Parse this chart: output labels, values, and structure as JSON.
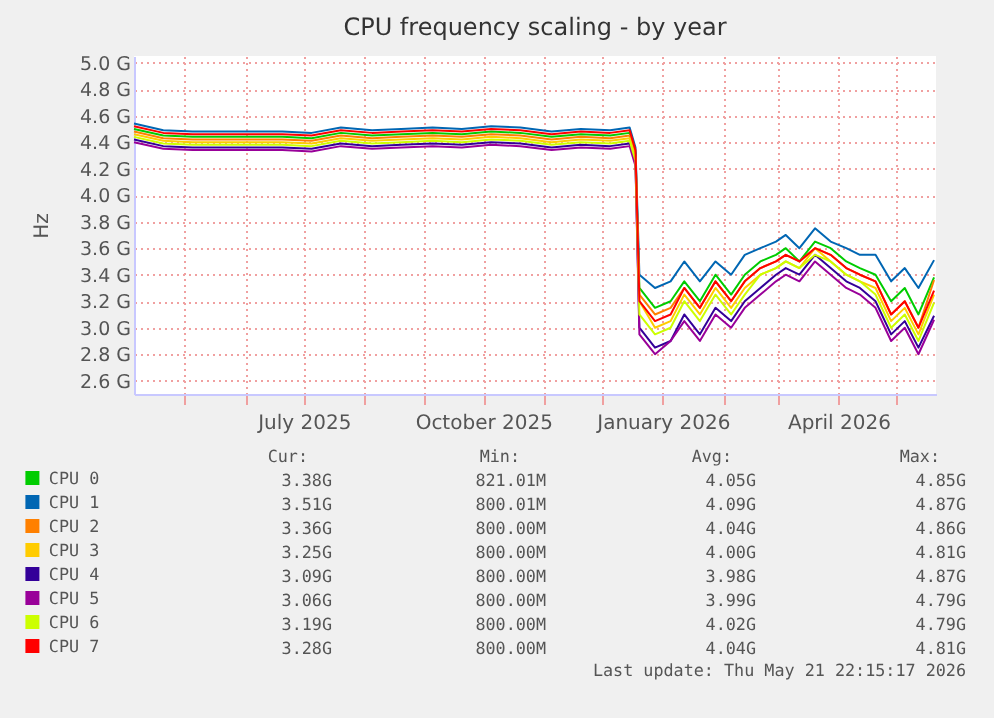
{
  "chart_data": {
    "type": "line",
    "title": "CPU frequency scaling - by year",
    "ylabel": "Hz",
    "x": [
      "2025-04-05",
      "2025-04-20",
      "2025-05-05",
      "2025-05-20",
      "2025-06-05",
      "2025-06-20",
      "2025-07-05",
      "2025-07-20",
      "2025-08-05",
      "2025-08-20",
      "2025-09-05",
      "2025-09-20",
      "2025-10-05",
      "2025-10-20",
      "2025-11-05",
      "2025-11-20",
      "2025-12-05",
      "2025-12-15",
      "2025-12-18",
      "2025-12-20",
      "2025-12-28",
      "2026-01-05",
      "2026-01-12",
      "2026-01-20",
      "2026-01-28",
      "2026-02-05",
      "2026-02-12",
      "2026-02-20",
      "2026-02-28",
      "2026-03-05",
      "2026-03-12",
      "2026-03-20",
      "2026-03-28",
      "2026-04-05",
      "2026-04-12",
      "2026-04-20",
      "2026-04-28",
      "2026-05-05",
      "2026-05-12",
      "2026-05-20"
    ],
    "series": [
      {
        "name": "CPU 0",
        "color": "#00cc00",
        "values": [
          4.5,
          4.45,
          4.44,
          4.44,
          4.44,
          4.44,
          4.43,
          4.47,
          4.45,
          4.46,
          4.47,
          4.46,
          4.48,
          4.47,
          4.44,
          4.46,
          4.45,
          4.47,
          4.32,
          3.3,
          3.15,
          3.2,
          3.35,
          3.2,
          3.4,
          3.25,
          3.4,
          3.5,
          3.55,
          3.6,
          3.5,
          3.65,
          3.6,
          3.5,
          3.45,
          3.4,
          3.2,
          3.3,
          3.1,
          3.38
        ]
      },
      {
        "name": "CPU 1",
        "color": "#0066b3",
        "values": [
          4.54,
          4.49,
          4.48,
          4.48,
          4.48,
          4.48,
          4.47,
          4.51,
          4.49,
          4.5,
          4.51,
          4.5,
          4.52,
          4.51,
          4.48,
          4.5,
          4.49,
          4.51,
          4.36,
          3.4,
          3.3,
          3.35,
          3.5,
          3.35,
          3.5,
          3.4,
          3.55,
          3.6,
          3.65,
          3.7,
          3.6,
          3.75,
          3.65,
          3.6,
          3.55,
          3.55,
          3.35,
          3.45,
          3.3,
          3.51
        ]
      },
      {
        "name": "CPU 2",
        "color": "#ff8000",
        "values": [
          4.48,
          4.43,
          4.42,
          4.42,
          4.42,
          4.42,
          4.41,
          4.45,
          4.43,
          4.44,
          4.45,
          4.44,
          4.46,
          4.45,
          4.42,
          4.44,
          4.43,
          4.45,
          4.3,
          3.25,
          3.1,
          3.15,
          3.3,
          3.15,
          3.35,
          3.2,
          3.35,
          3.45,
          3.5,
          3.55,
          3.5,
          3.6,
          3.55,
          3.45,
          3.4,
          3.35,
          3.1,
          3.2,
          3.0,
          3.36
        ]
      },
      {
        "name": "CPU 3",
        "color": "#ffcc00",
        "values": [
          4.46,
          4.41,
          4.4,
          4.4,
          4.4,
          4.4,
          4.39,
          4.43,
          4.41,
          4.42,
          4.43,
          4.42,
          4.44,
          4.43,
          4.4,
          4.42,
          4.41,
          4.43,
          4.28,
          3.2,
          3.0,
          3.05,
          3.25,
          3.1,
          3.3,
          3.15,
          3.3,
          3.4,
          3.45,
          3.5,
          3.45,
          3.6,
          3.5,
          3.4,
          3.35,
          3.3,
          3.05,
          3.15,
          2.95,
          3.25
        ]
      },
      {
        "name": "CPU 4",
        "color": "#330099",
        "values": [
          4.42,
          4.37,
          4.36,
          4.36,
          4.36,
          4.36,
          4.35,
          4.39,
          4.37,
          4.38,
          4.39,
          4.38,
          4.4,
          4.39,
          4.36,
          4.38,
          4.37,
          4.39,
          4.24,
          3.0,
          2.85,
          2.9,
          3.1,
          2.95,
          3.15,
          3.05,
          3.2,
          3.3,
          3.4,
          3.45,
          3.4,
          3.55,
          3.45,
          3.35,
          3.3,
          3.2,
          2.95,
          3.05,
          2.85,
          3.09
        ]
      },
      {
        "name": "CPU 5",
        "color": "#990099",
        "values": [
          4.4,
          4.35,
          4.34,
          4.34,
          4.34,
          4.34,
          4.33,
          4.37,
          4.35,
          4.36,
          4.37,
          4.36,
          4.38,
          4.37,
          4.34,
          4.36,
          4.35,
          4.37,
          4.22,
          2.95,
          2.8,
          2.9,
          3.05,
          2.9,
          3.1,
          3.0,
          3.15,
          3.25,
          3.35,
          3.4,
          3.35,
          3.5,
          3.4,
          3.3,
          3.25,
          3.15,
          2.9,
          3.0,
          2.8,
          3.06
        ]
      },
      {
        "name": "CPU 6",
        "color": "#ccff00",
        "values": [
          4.44,
          4.39,
          4.38,
          4.38,
          4.38,
          4.38,
          4.37,
          4.41,
          4.39,
          4.4,
          4.41,
          4.4,
          4.42,
          4.41,
          4.38,
          4.4,
          4.39,
          4.41,
          4.26,
          3.1,
          2.95,
          3.0,
          3.2,
          3.05,
          3.25,
          3.1,
          3.25,
          3.4,
          3.45,
          3.5,
          3.45,
          3.55,
          3.5,
          3.4,
          3.35,
          3.25,
          3.0,
          3.1,
          2.9,
          3.19
        ]
      },
      {
        "name": "CPU 7",
        "color": "#ff0000",
        "values": [
          4.52,
          4.47,
          4.46,
          4.46,
          4.46,
          4.46,
          4.45,
          4.49,
          4.47,
          4.48,
          4.49,
          4.48,
          4.5,
          4.49,
          4.46,
          4.48,
          4.47,
          4.49,
          4.34,
          3.2,
          3.05,
          3.1,
          3.3,
          3.15,
          3.35,
          3.2,
          3.35,
          3.45,
          3.5,
          3.55,
          3.5,
          3.6,
          3.55,
          3.45,
          3.4,
          3.35,
          3.1,
          3.2,
          3.0,
          3.28
        ]
      }
    ],
    "xlim": [
      "2025-04-05",
      "2026-05-21"
    ],
    "xticks": [
      {
        "value": "2025-05-01",
        "label": null
      },
      {
        "value": "2025-06-01",
        "label": null
      },
      {
        "value": "2025-07-01",
        "label": "July 2025"
      },
      {
        "value": "2025-08-01",
        "label": null
      },
      {
        "value": "2025-09-01",
        "label": null
      },
      {
        "value": "2025-10-01",
        "label": "October 2025"
      },
      {
        "value": "2025-11-01",
        "label": null
      },
      {
        "value": "2025-12-01",
        "label": null
      },
      {
        "value": "2026-01-01",
        "label": "January 2026"
      },
      {
        "value": "2026-02-01",
        "label": null
      },
      {
        "value": "2026-03-01",
        "label": null
      },
      {
        "value": "2026-04-01",
        "label": "April 2026"
      },
      {
        "value": "2026-05-01",
        "label": null
      }
    ],
    "ylim": [
      2.5,
      5.05
    ],
    "yticks": [
      {
        "value": 2.6,
        "label": "2.6 G"
      },
      {
        "value": 2.8,
        "label": "2.8 G"
      },
      {
        "value": 3.0,
        "label": "3.0 G"
      },
      {
        "value": 3.2,
        "label": "3.2 G"
      },
      {
        "value": 3.4,
        "label": "3.4 G"
      },
      {
        "value": 3.6,
        "label": "3.6 G"
      },
      {
        "value": 3.8,
        "label": "3.8 G"
      },
      {
        "value": 4.0,
        "label": "4.0 G"
      },
      {
        "value": 4.2,
        "label": "4.2 G"
      },
      {
        "value": 4.4,
        "label": "4.4 G"
      },
      {
        "value": 4.6,
        "label": "4.6 G"
      },
      {
        "value": 4.8,
        "label": "4.8 G"
      },
      {
        "value": 5.0,
        "label": "5.0 G"
      }
    ],
    "grid": true,
    "legend": "bottom",
    "line_style": "solid",
    "annotations": [
      "Cur:",
      "Min:",
      "Avg:",
      "Max:",
      "3.38G",
      "821.01M",
      "4.05G",
      "4.85G",
      "3.51G",
      "800.01M",
      "4.09G",
      "4.87G",
      "3.36G",
      "800.00M",
      "4.04G",
      "4.86G",
      "3.25G",
      "800.00M",
      "4.00G",
      "4.81G",
      "3.09G",
      "800.00M",
      "3.98G",
      "4.87G",
      "3.06G",
      "800.00M",
      "3.99G",
      "4.79G",
      "3.19G",
      "800.00M",
      "4.02G",
      "4.79G",
      "3.28G",
      "800.00M",
      "4.04G",
      "4.81G",
      "Last update: Thu May 21 22:15:17 2026"
    ]
  }
}
